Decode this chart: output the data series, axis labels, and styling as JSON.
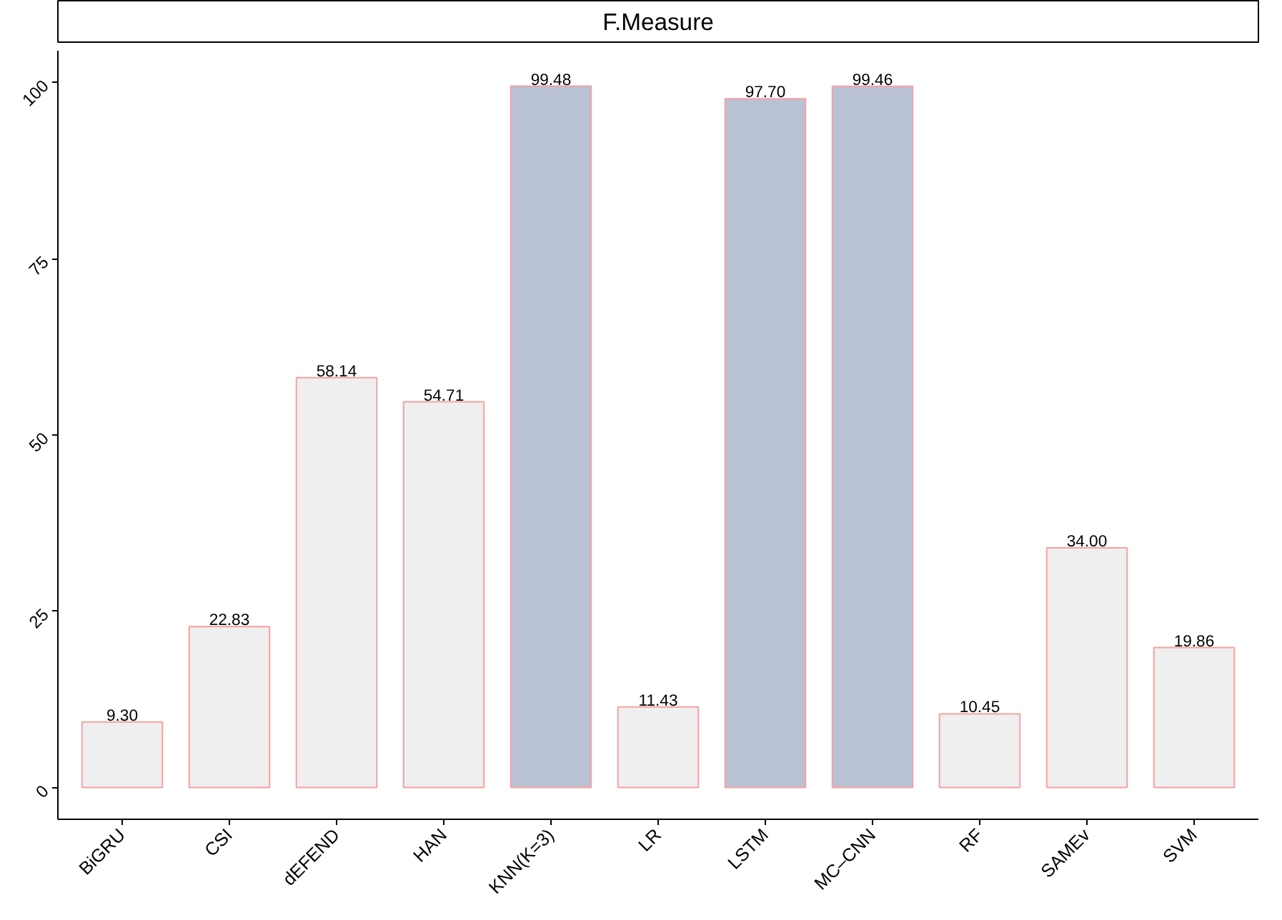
{
  "chart_data": {
    "type": "bar",
    "title": "F.Measure",
    "categories": [
      "BiGRU",
      "CSI",
      "dEFEND",
      "HAN",
      "KNN(K=3)",
      "LR",
      "LSTM",
      "MC–CNN",
      "RF",
      "SAMEv",
      "SVM"
    ],
    "values": [
      9.3,
      22.83,
      58.14,
      54.71,
      99.48,
      11.43,
      97.7,
      99.46,
      10.45,
      34.0,
      19.86
    ],
    "value_labels": [
      "9.30",
      "22.83",
      "58.14",
      "54.71",
      "99.48",
      "11.43",
      "97.70",
      "99.46",
      "10.45",
      "34.00",
      "19.86"
    ],
    "colors": [
      "#efefef",
      "#efefef",
      "#efefef",
      "#efefef",
      "#b8c2d4",
      "#efefef",
      "#b8c2d4",
      "#b8c2d4",
      "#efefef",
      "#efefef",
      "#efefef"
    ],
    "ylim": [
      -4.5,
      104.5
    ],
    "yticks": [
      0,
      25,
      50,
      75,
      100
    ]
  }
}
